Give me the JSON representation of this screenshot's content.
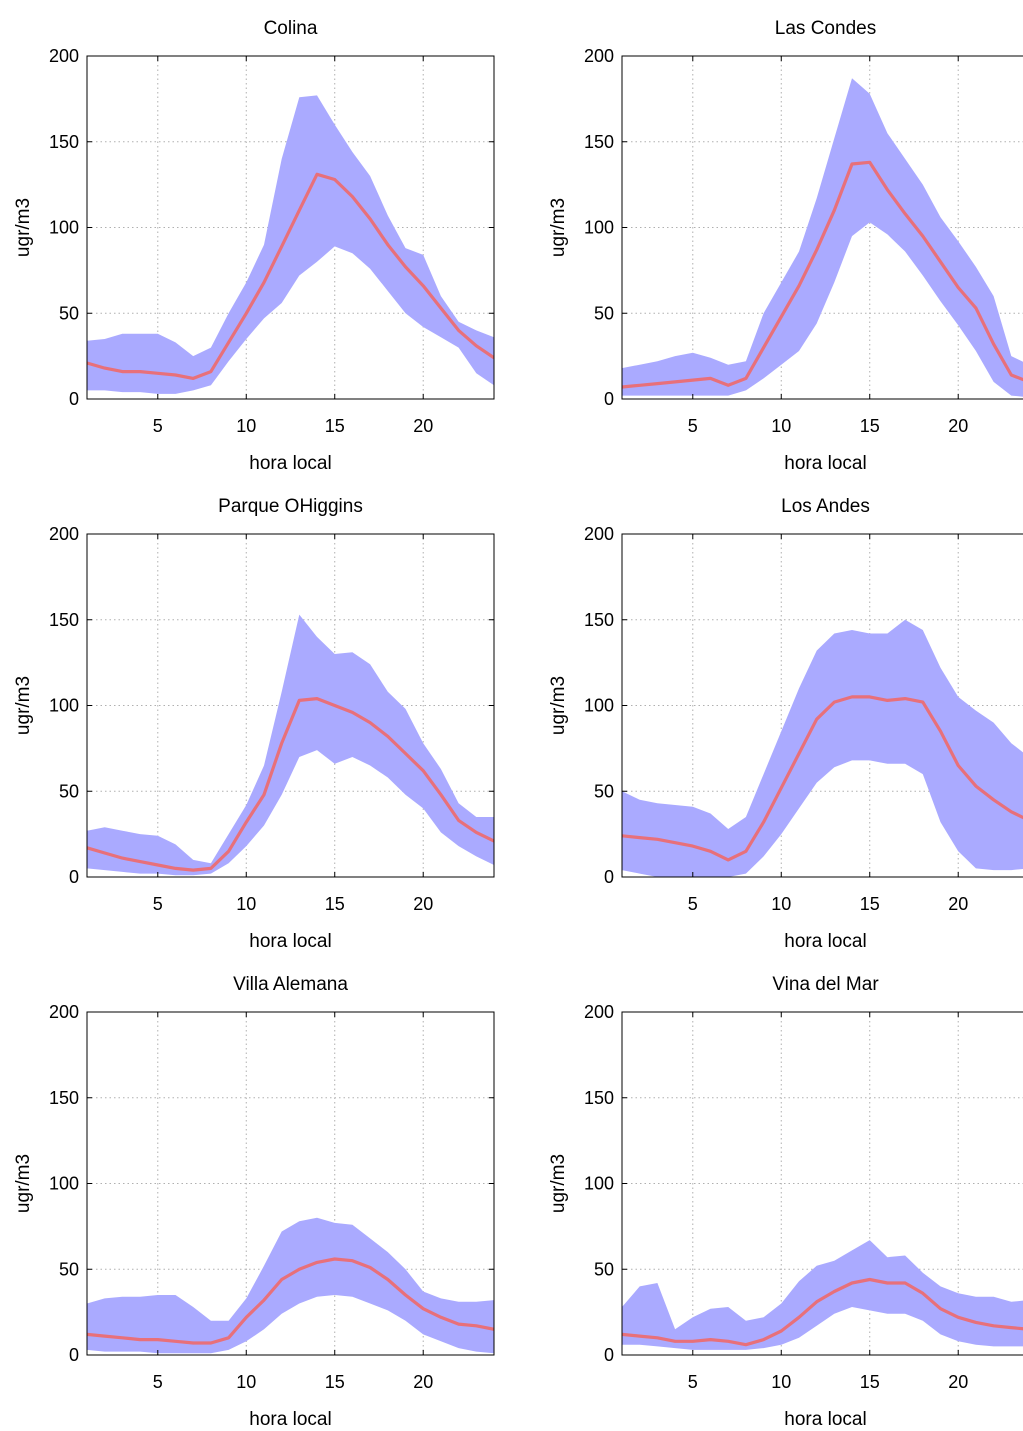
{
  "figure": {
    "band_color": "#aaaaff",
    "line_color": "#e8707a",
    "xlabel": "hora local",
    "ylabel": "ugr/m3",
    "x_ticks": [
      5,
      10,
      15,
      20
    ],
    "y_ticks": [
      0,
      50,
      100,
      150,
      200
    ]
  },
  "chart_data": [
    {
      "type": "area",
      "title": "Colina",
      "xlabel": "hora local",
      "ylabel": "ugr/m3",
      "xlim": [
        1,
        24
      ],
      "ylim": [
        0,
        200
      ],
      "grid": true,
      "x": [
        1,
        2,
        3,
        4,
        5,
        6,
        7,
        8,
        9,
        10,
        11,
        12,
        13,
        14,
        15,
        16,
        17,
        18,
        19,
        20,
        21,
        22,
        23,
        24
      ],
      "series": [
        {
          "role": "mean",
          "values": [
            21,
            18,
            16,
            16,
            15,
            14,
            12,
            16,
            33,
            50,
            68,
            89,
            110,
            131,
            128,
            118,
            105,
            90,
            77,
            66,
            53,
            40,
            31,
            24
          ]
        },
        {
          "role": "upper",
          "values": [
            34,
            35,
            38,
            38,
            38,
            33,
            25,
            30,
            50,
            68,
            90,
            140,
            176,
            177,
            160,
            144,
            130,
            107,
            88,
            84,
            60,
            45,
            40,
            36
          ]
        },
        {
          "role": "lower",
          "values": [
            5,
            5,
            4,
            4,
            3,
            3,
            5,
            8,
            22,
            35,
            47,
            56,
            72,
            80,
            89,
            85,
            76,
            63,
            50,
            42,
            36,
            30,
            15,
            8
          ]
        }
      ]
    },
    {
      "type": "area",
      "title": "Las Condes",
      "xlabel": "hora local",
      "ylabel": "ugr/m3",
      "xlim": [
        1,
        24
      ],
      "ylim": [
        0,
        200
      ],
      "grid": true,
      "x": [
        1,
        2,
        3,
        4,
        5,
        6,
        7,
        8,
        9,
        10,
        11,
        12,
        13,
        14,
        15,
        16,
        17,
        18,
        19,
        20,
        21,
        22,
        23,
        24
      ],
      "series": [
        {
          "role": "mean",
          "values": [
            7,
            8,
            9,
            10,
            11,
            12,
            8,
            12,
            30,
            48,
            66,
            87,
            110,
            137,
            138,
            122,
            108,
            95,
            80,
            65,
            53,
            32,
            14,
            10
          ]
        },
        {
          "role": "upper",
          "values": [
            18,
            20,
            22,
            25,
            27,
            24,
            20,
            22,
            50,
            68,
            86,
            117,
            152,
            187,
            178,
            155,
            140,
            125,
            106,
            92,
            77,
            60,
            25,
            20
          ]
        },
        {
          "role": "lower",
          "values": [
            2,
            2,
            2,
            2,
            2,
            2,
            2,
            5,
            12,
            20,
            28,
            44,
            68,
            95,
            103,
            96,
            86,
            72,
            57,
            43,
            28,
            10,
            2,
            1
          ]
        }
      ]
    },
    {
      "type": "area",
      "title": "Parque OHiggins",
      "xlabel": "hora local",
      "ylabel": "ugr/m3",
      "xlim": [
        1,
        24
      ],
      "ylim": [
        0,
        200
      ],
      "grid": true,
      "x": [
        1,
        2,
        3,
        4,
        5,
        6,
        7,
        8,
        9,
        10,
        11,
        12,
        13,
        14,
        15,
        16,
        17,
        18,
        19,
        20,
        21,
        22,
        23,
        24
      ],
      "series": [
        {
          "role": "mean",
          "values": [
            17,
            14,
            11,
            9,
            7,
            5,
            4,
            5,
            15,
            32,
            48,
            78,
            103,
            104,
            100,
            96,
            90,
            82,
            72,
            62,
            48,
            33,
            26,
            21
          ]
        },
        {
          "role": "upper",
          "values": [
            27,
            29,
            27,
            25,
            24,
            19,
            10,
            8,
            25,
            42,
            65,
            108,
            153,
            140,
            130,
            131,
            124,
            108,
            98,
            78,
            63,
            43,
            35,
            35
          ]
        },
        {
          "role": "lower",
          "values": [
            5,
            4,
            3,
            2,
            2,
            1,
            1,
            2,
            8,
            18,
            30,
            48,
            70,
            74,
            66,
            70,
            65,
            58,
            48,
            40,
            26,
            18,
            12,
            7
          ]
        }
      ]
    },
    {
      "type": "area",
      "title": "Los Andes",
      "xlabel": "hora local",
      "ylabel": "ugr/m3",
      "xlim": [
        1,
        24
      ],
      "ylim": [
        0,
        200
      ],
      "grid": true,
      "x": [
        1,
        2,
        3,
        4,
        5,
        6,
        7,
        8,
        9,
        10,
        11,
        12,
        13,
        14,
        15,
        16,
        17,
        18,
        19,
        20,
        21,
        22,
        23,
        24
      ],
      "series": [
        {
          "role": "mean",
          "values": [
            24,
            23,
            22,
            20,
            18,
            15,
            10,
            15,
            32,
            52,
            72,
            92,
            102,
            105,
            105,
            103,
            104,
            102,
            85,
            65,
            53,
            45,
            38,
            33
          ]
        },
        {
          "role": "upper",
          "values": [
            50,
            45,
            43,
            42,
            41,
            37,
            28,
            35,
            60,
            85,
            110,
            132,
            142,
            144,
            142,
            142,
            150,
            144,
            122,
            105,
            97,
            90,
            78,
            70
          ]
        },
        {
          "role": "lower",
          "values": [
            4,
            2,
            0,
            0,
            0,
            0,
            0,
            2,
            12,
            25,
            40,
            55,
            64,
            68,
            68,
            66,
            66,
            60,
            32,
            15,
            5,
            4,
            4,
            5
          ]
        }
      ]
    },
    {
      "type": "area",
      "title": "Villa Alemana",
      "xlabel": "hora local",
      "ylabel": "ugr/m3",
      "xlim": [
        1,
        24
      ],
      "ylim": [
        0,
        200
      ],
      "grid": true,
      "x": [
        1,
        2,
        3,
        4,
        5,
        6,
        7,
        8,
        9,
        10,
        11,
        12,
        13,
        14,
        15,
        16,
        17,
        18,
        19,
        20,
        21,
        22,
        23,
        24
      ],
      "series": [
        {
          "role": "mean",
          "values": [
            12,
            11,
            10,
            9,
            9,
            8,
            7,
            7,
            10,
            22,
            32,
            44,
            50,
            54,
            56,
            55,
            51,
            44,
            35,
            27,
            22,
            18,
            17,
            15
          ]
        },
        {
          "role": "upper",
          "values": [
            30,
            33,
            34,
            34,
            35,
            35,
            28,
            20,
            20,
            33,
            52,
            72,
            78,
            80,
            77,
            76,
            68,
            60,
            50,
            37,
            33,
            31,
            31,
            32
          ]
        },
        {
          "role": "lower",
          "values": [
            3,
            2,
            2,
            2,
            1,
            1,
            1,
            1,
            3,
            8,
            15,
            24,
            30,
            34,
            35,
            34,
            30,
            26,
            20,
            12,
            8,
            4,
            2,
            1
          ]
        }
      ]
    },
    {
      "type": "area",
      "title": "Vina del Mar",
      "xlabel": "hora local",
      "ylabel": "ugr/m3",
      "xlim": [
        1,
        24
      ],
      "ylim": [
        0,
        200
      ],
      "grid": true,
      "x": [
        1,
        2,
        3,
        4,
        5,
        6,
        7,
        8,
        9,
        10,
        11,
        12,
        13,
        14,
        15,
        16,
        17,
        18,
        19,
        20,
        21,
        22,
        23,
        24
      ],
      "series": [
        {
          "role": "mean",
          "values": [
            12,
            11,
            10,
            8,
            8,
            9,
            8,
            6,
            9,
            14,
            22,
            31,
            37,
            42,
            44,
            42,
            42,
            36,
            27,
            22,
            19,
            17,
            16,
            15
          ]
        },
        {
          "role": "upper",
          "values": [
            28,
            40,
            42,
            15,
            22,
            27,
            28,
            20,
            22,
            30,
            43,
            52,
            55,
            61,
            67,
            57,
            58,
            48,
            40,
            36,
            34,
            34,
            31,
            32
          ]
        },
        {
          "role": "lower",
          "values": [
            6,
            6,
            5,
            4,
            3,
            3,
            3,
            3,
            4,
            6,
            10,
            17,
            24,
            28,
            26,
            24,
            24,
            20,
            12,
            8,
            6,
            5,
            5,
            5
          ]
        }
      ]
    }
  ]
}
